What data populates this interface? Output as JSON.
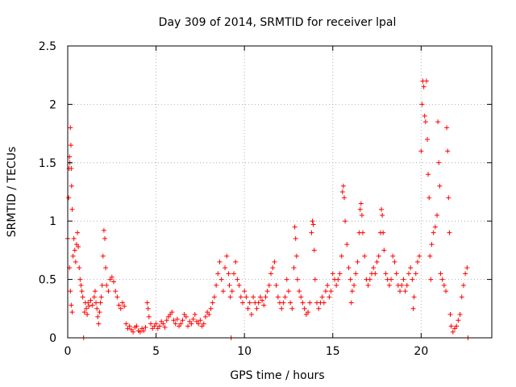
{
  "chart_data": {
    "type": "scatter",
    "title": "Day 309 of 2014, SRMTID for receiver lpal",
    "xlabel": "GPS time / hours",
    "ylabel": "SRMTID / TECUs",
    "xlim": [
      0,
      24
    ],
    "ylim": [
      0,
      2.5
    ],
    "xticks": [
      0,
      5,
      10,
      15,
      20
    ],
    "xtick_labels": [
      "0",
      "5",
      "10",
      "15",
      "20"
    ],
    "yticks": [
      0,
      0.5,
      1,
      1.5,
      2,
      2.5
    ],
    "ytick_labels": [
      "0",
      "0.5",
      "1",
      "1.5",
      "2",
      "2.5"
    ],
    "grid": true,
    "marker": "+",
    "series": [
      {
        "name": "SRMTID",
        "color": "#ff0000",
        "points": [
          [
            0.0,
            0.85
          ],
          [
            0.05,
            1.2
          ],
          [
            0.08,
            1.45
          ],
          [
            0.1,
            1.55
          ],
          [
            0.12,
            1.5
          ],
          [
            0.15,
            1.8
          ],
          [
            0.18,
            1.65
          ],
          [
            0.2,
            1.45
          ],
          [
            0.22,
            1.3
          ],
          [
            0.25,
            1.1
          ],
          [
            0.1,
            0.6
          ],
          [
            0.15,
            0.4
          ],
          [
            0.2,
            0.28
          ],
          [
            0.25,
            0.22
          ],
          [
            0.3,
            0.7
          ],
          [
            0.35,
            0.85
          ],
          [
            0.4,
            0.75
          ],
          [
            0.45,
            0.65
          ],
          [
            0.5,
            0.8
          ],
          [
            0.55,
            0.9
          ],
          [
            0.6,
            0.78
          ],
          [
            0.65,
            0.6
          ],
          [
            0.7,
            0.5
          ],
          [
            0.75,
            0.45
          ],
          [
            0.8,
            0.4
          ],
          [
            0.85,
            0.35
          ],
          [
            0.9,
            0.0
          ],
          [
            0.95,
            0.22
          ],
          [
            1.0,
            0.3
          ],
          [
            1.05,
            0.25
          ],
          [
            1.1,
            0.2
          ],
          [
            1.15,
            0.3
          ],
          [
            1.2,
            0.27
          ],
          [
            1.3,
            0.32
          ],
          [
            1.4,
            0.28
          ],
          [
            1.5,
            0.35
          ],
          [
            1.55,
            0.4
          ],
          [
            1.6,
            0.3
          ],
          [
            1.65,
            0.25
          ],
          [
            1.7,
            0.18
          ],
          [
            1.75,
            0.12
          ],
          [
            1.8,
            0.22
          ],
          [
            1.85,
            0.3
          ],
          [
            1.9,
            0.35
          ],
          [
            1.95,
            0.45
          ],
          [
            2.0,
            0.7
          ],
          [
            2.05,
            0.92
          ],
          [
            2.1,
            0.85
          ],
          [
            2.15,
            0.6
          ],
          [
            2.2,
            0.45
          ],
          [
            2.3,
            0.4
          ],
          [
            2.4,
            0.5
          ],
          [
            2.5,
            0.52
          ],
          [
            2.6,
            0.48
          ],
          [
            2.7,
            0.4
          ],
          [
            2.8,
            0.35
          ],
          [
            2.9,
            0.28
          ],
          [
            3.0,
            0.25
          ],
          [
            3.1,
            0.3
          ],
          [
            3.2,
            0.27
          ],
          [
            3.3,
            0.12
          ],
          [
            3.4,
            0.08
          ],
          [
            3.5,
            0.1
          ],
          [
            3.6,
            0.07
          ],
          [
            3.7,
            0.05
          ],
          [
            3.8,
            0.09
          ],
          [
            3.9,
            0.1
          ],
          [
            4.0,
            0.06
          ],
          [
            4.1,
            0.05
          ],
          [
            4.2,
            0.08
          ],
          [
            4.3,
            0.06
          ],
          [
            4.4,
            0.09
          ],
          [
            4.5,
            0.3
          ],
          [
            4.55,
            0.25
          ],
          [
            4.6,
            0.18
          ],
          [
            4.7,
            0.12
          ],
          [
            4.8,
            0.08
          ],
          [
            4.9,
            0.1
          ],
          [
            5.0,
            0.12
          ],
          [
            5.1,
            0.08
          ],
          [
            5.2,
            0.1
          ],
          [
            5.3,
            0.14
          ],
          [
            5.4,
            0.12
          ],
          [
            5.5,
            0.09
          ],
          [
            5.6,
            0.15
          ],
          [
            5.7,
            0.18
          ],
          [
            5.8,
            0.2
          ],
          [
            5.9,
            0.22
          ],
          [
            6.0,
            0.15
          ],
          [
            6.1,
            0.12
          ],
          [
            6.2,
            0.16
          ],
          [
            6.3,
            0.1
          ],
          [
            6.4,
            0.12
          ],
          [
            6.5,
            0.15
          ],
          [
            6.6,
            0.2
          ],
          [
            6.7,
            0.18
          ],
          [
            6.8,
            0.1
          ],
          [
            6.9,
            0.14
          ],
          [
            7.0,
            0.12
          ],
          [
            7.1,
            0.16
          ],
          [
            7.2,
            0.2
          ],
          [
            7.3,
            0.14
          ],
          [
            7.4,
            0.12
          ],
          [
            7.5,
            0.15
          ],
          [
            7.6,
            0.1
          ],
          [
            7.7,
            0.12
          ],
          [
            7.8,
            0.18
          ],
          [
            7.9,
            0.22
          ],
          [
            8.0,
            0.2
          ],
          [
            8.1,
            0.25
          ],
          [
            8.2,
            0.3
          ],
          [
            8.3,
            0.35
          ],
          [
            8.4,
            0.45
          ],
          [
            8.5,
            0.55
          ],
          [
            8.6,
            0.65
          ],
          [
            8.7,
            0.5
          ],
          [
            8.8,
            0.4
          ],
          [
            8.9,
            0.6
          ],
          [
            9.0,
            0.7
          ],
          [
            9.1,
            0.55
          ],
          [
            9.15,
            0.45
          ],
          [
            9.2,
            0.35
          ],
          [
            9.25,
            0.0
          ],
          [
            9.3,
            0.4
          ],
          [
            9.4,
            0.55
          ],
          [
            9.5,
            0.65
          ],
          [
            9.6,
            0.5
          ],
          [
            9.7,
            0.45
          ],
          [
            9.8,
            0.35
          ],
          [
            9.9,
            0.3
          ],
          [
            10.0,
            0.4
          ],
          [
            10.1,
            0.35
          ],
          [
            10.2,
            0.25
          ],
          [
            10.3,
            0.3
          ],
          [
            10.4,
            0.2
          ],
          [
            10.5,
            0.35
          ],
          [
            10.6,
            0.3
          ],
          [
            10.7,
            0.25
          ],
          [
            10.8,
            0.3
          ],
          [
            10.9,
            0.35
          ],
          [
            11.0,
            0.32
          ],
          [
            11.1,
            0.28
          ],
          [
            11.2,
            0.35
          ],
          [
            11.3,
            0.4
          ],
          [
            11.4,
            0.45
          ],
          [
            11.5,
            0.55
          ],
          [
            11.6,
            0.6
          ],
          [
            11.7,
            0.65
          ],
          [
            11.8,
            0.45
          ],
          [
            11.9,
            0.35
          ],
          [
            12.0,
            0.3
          ],
          [
            12.1,
            0.25
          ],
          [
            12.2,
            0.3
          ],
          [
            12.3,
            0.35
          ],
          [
            12.4,
            0.5
          ],
          [
            12.5,
            0.4
          ],
          [
            12.6,
            0.3
          ],
          [
            12.7,
            0.25
          ],
          [
            12.8,
            0.6
          ],
          [
            12.85,
            0.95
          ],
          [
            12.9,
            0.85
          ],
          [
            12.95,
            0.7
          ],
          [
            13.0,
            0.5
          ],
          [
            13.1,
            0.4
          ],
          [
            13.2,
            0.35
          ],
          [
            13.3,
            0.3
          ],
          [
            13.4,
            0.25
          ],
          [
            13.5,
            0.2
          ],
          [
            13.6,
            0.22
          ],
          [
            13.7,
            0.3
          ],
          [
            13.8,
            0.9
          ],
          [
            13.85,
            1.0
          ],
          [
            13.9,
            0.97
          ],
          [
            13.95,
            0.75
          ],
          [
            14.0,
            0.5
          ],
          [
            14.1,
            0.3
          ],
          [
            14.2,
            0.25
          ],
          [
            14.3,
            0.3
          ],
          [
            14.4,
            0.35
          ],
          [
            14.5,
            0.3
          ],
          [
            14.6,
            0.4
          ],
          [
            14.7,
            0.45
          ],
          [
            14.8,
            0.35
          ],
          [
            14.9,
            0.4
          ],
          [
            15.0,
            0.55
          ],
          [
            15.1,
            0.5
          ],
          [
            15.2,
            0.45
          ],
          [
            15.3,
            0.5
          ],
          [
            15.4,
            0.55
          ],
          [
            15.5,
            0.7
          ],
          [
            15.55,
            1.25
          ],
          [
            15.6,
            1.3
          ],
          [
            15.65,
            1.2
          ],
          [
            15.7,
            1.0
          ],
          [
            15.8,
            0.8
          ],
          [
            15.9,
            0.6
          ],
          [
            16.0,
            0.5
          ],
          [
            16.05,
            0.3
          ],
          [
            16.1,
            0.4
          ],
          [
            16.2,
            0.45
          ],
          [
            16.3,
            0.55
          ],
          [
            16.4,
            0.65
          ],
          [
            16.5,
            0.9
          ],
          [
            16.55,
            1.1
          ],
          [
            16.6,
            1.15
          ],
          [
            16.65,
            1.05
          ],
          [
            16.7,
            0.9
          ],
          [
            16.8,
            0.7
          ],
          [
            16.9,
            0.5
          ],
          [
            17.0,
            0.45
          ],
          [
            17.1,
            0.5
          ],
          [
            17.2,
            0.55
          ],
          [
            17.3,
            0.6
          ],
          [
            17.4,
            0.55
          ],
          [
            17.5,
            0.65
          ],
          [
            17.6,
            0.7
          ],
          [
            17.7,
            0.9
          ],
          [
            17.75,
            1.1
          ],
          [
            17.8,
            1.05
          ],
          [
            17.85,
            0.9
          ],
          [
            17.9,
            0.75
          ],
          [
            18.0,
            0.55
          ],
          [
            18.1,
            0.5
          ],
          [
            18.2,
            0.45
          ],
          [
            18.3,
            0.5
          ],
          [
            18.4,
            0.7
          ],
          [
            18.5,
            0.65
          ],
          [
            18.6,
            0.55
          ],
          [
            18.7,
            0.45
          ],
          [
            18.8,
            0.4
          ],
          [
            18.9,
            0.45
          ],
          [
            19.0,
            0.5
          ],
          [
            19.1,
            0.4
          ],
          [
            19.2,
            0.45
          ],
          [
            19.3,
            0.55
          ],
          [
            19.4,
            0.6
          ],
          [
            19.5,
            0.5
          ],
          [
            19.55,
            0.25
          ],
          [
            19.6,
            0.35
          ],
          [
            19.7,
            0.55
          ],
          [
            19.8,
            0.65
          ],
          [
            19.9,
            0.7
          ],
          [
            20.0,
            1.6
          ],
          [
            20.05,
            2.0
          ],
          [
            20.1,
            2.2
          ],
          [
            20.15,
            2.15
          ],
          [
            20.2,
            1.9
          ],
          [
            20.25,
            1.85
          ],
          [
            20.3,
            2.2
          ],
          [
            20.35,
            1.7
          ],
          [
            20.4,
            1.4
          ],
          [
            20.45,
            1.2
          ],
          [
            20.5,
            0.7
          ],
          [
            20.55,
            0.5
          ],
          [
            20.6,
            0.8
          ],
          [
            20.7,
            0.9
          ],
          [
            20.8,
            0.95
          ],
          [
            20.9,
            1.05
          ],
          [
            20.95,
            1.85
          ],
          [
            21.0,
            1.5
          ],
          [
            21.05,
            1.3
          ],
          [
            21.1,
            0.55
          ],
          [
            21.2,
            0.5
          ],
          [
            21.3,
            0.45
          ],
          [
            21.4,
            0.4
          ],
          [
            21.45,
            1.8
          ],
          [
            21.5,
            1.6
          ],
          [
            21.55,
            1.2
          ],
          [
            21.6,
            0.9
          ],
          [
            21.65,
            0.2
          ],
          [
            21.7,
            0.1
          ],
          [
            21.8,
            0.05
          ],
          [
            21.9,
            0.08
          ],
          [
            22.0,
            0.1
          ],
          [
            22.1,
            0.15
          ],
          [
            22.2,
            0.2
          ],
          [
            22.3,
            0.35
          ],
          [
            22.4,
            0.45
          ],
          [
            22.5,
            0.55
          ],
          [
            22.6,
            0.6
          ],
          [
            22.65,
            0.0
          ]
        ]
      }
    ]
  }
}
